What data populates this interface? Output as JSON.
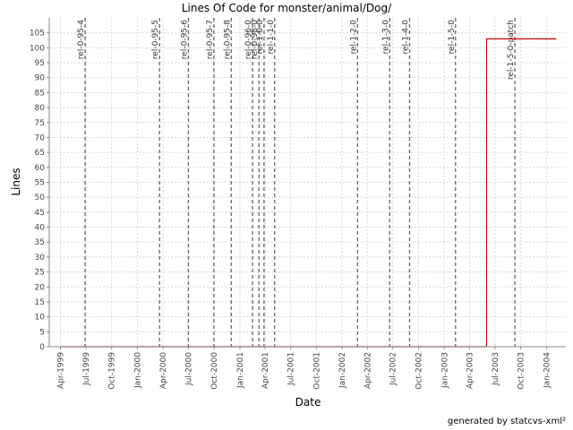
{
  "footer": "generated by statcvs-xml²",
  "chart_data": {
    "type": "line",
    "title": "Lines Of Code for monster/animal/Dog/",
    "xlabel": "Date",
    "ylabel": "Lines",
    "ylim": [
      0,
      110
    ],
    "xlim": [
      "1999-02-20",
      "2004-03-10"
    ],
    "y_ticks": [
      0,
      5,
      10,
      15,
      20,
      25,
      30,
      35,
      40,
      45,
      50,
      55,
      60,
      65,
      70,
      75,
      80,
      85,
      90,
      95,
      100,
      105
    ],
    "x_ticks": [
      {
        "date": "1999-04-01",
        "label": "Apr-1999"
      },
      {
        "date": "1999-07-01",
        "label": "Jul-1999"
      },
      {
        "date": "1999-10-01",
        "label": "Oct-1999"
      },
      {
        "date": "2000-01-01",
        "label": "Jan-2000"
      },
      {
        "date": "2000-04-01",
        "label": "Apr-2000"
      },
      {
        "date": "2000-07-01",
        "label": "Jul-2000"
      },
      {
        "date": "2000-10-01",
        "label": "Oct-2000"
      },
      {
        "date": "2001-01-01",
        "label": "Jan-2001"
      },
      {
        "date": "2001-04-01",
        "label": "Apr-2001"
      },
      {
        "date": "2001-07-01",
        "label": "Jul-2001"
      },
      {
        "date": "2001-10-01",
        "label": "Oct-2001"
      },
      {
        "date": "2002-01-01",
        "label": "Jan-2002"
      },
      {
        "date": "2002-04-01",
        "label": "Apr-2002"
      },
      {
        "date": "2002-07-01",
        "label": "Jul-2002"
      },
      {
        "date": "2002-10-01",
        "label": "Oct-2002"
      },
      {
        "date": "2003-01-01",
        "label": "Jan-2003"
      },
      {
        "date": "2003-04-01",
        "label": "Apr-2003"
      },
      {
        "date": "2003-07-01",
        "label": "Jul-2003"
      },
      {
        "date": "2003-10-01",
        "label": "Oct-2003"
      },
      {
        "date": "2004-01-01",
        "label": "Jan-2004"
      }
    ],
    "grid": true,
    "series": [
      {
        "color": "#cc0000",
        "step": true,
        "points": [
          {
            "x": "1999-04-01",
            "y": 0
          },
          {
            "x": "2003-06-01",
            "y": 0
          },
          {
            "x": "2003-06-01",
            "y": 103
          },
          {
            "x": "2004-02-05",
            "y": 103
          }
        ]
      }
    ],
    "markers": [
      {
        "label": "rel-0-95-4",
        "date": "1999-06-28"
      },
      {
        "label": "rel-0-95-5",
        "date": "2000-03-20"
      },
      {
        "label": "rel-0-95-6",
        "date": "2000-07-01"
      },
      {
        "label": "rel-0-95-7",
        "date": "2000-09-30"
      },
      {
        "label": "rel-0-95-8",
        "date": "2000-12-01"
      },
      {
        "label": "rel-0-96-0",
        "date": "2001-02-15"
      },
      {
        "label": "rel-0-98-0",
        "date": "2001-03-10"
      },
      {
        "label": "rel-1-0-0",
        "date": "2001-03-28"
      },
      {
        "label": "rel-1-1-0",
        "date": "2001-05-05"
      },
      {
        "label": "rel-1-2-0",
        "date": "2002-02-25"
      },
      {
        "label": "rel-1-3-0",
        "date": "2002-06-20"
      },
      {
        "label": "rel-1-4-0",
        "date": "2002-08-30"
      },
      {
        "label": "rel-1-5-0",
        "date": "2003-02-10"
      },
      {
        "label": "rel-1-5-0-patch",
        "date": "2003-09-10"
      }
    ]
  }
}
